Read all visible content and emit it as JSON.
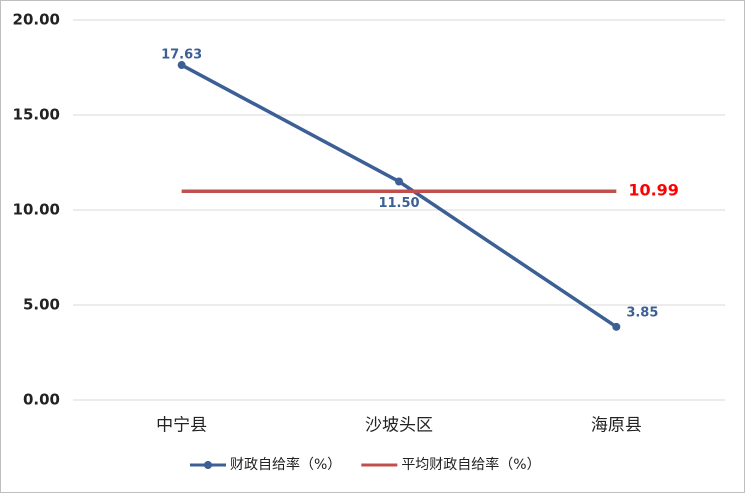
{
  "chart_data": {
    "type": "line",
    "categories": [
      "中宁县",
      "沙坡头区",
      "海原县"
    ],
    "series": [
      {
        "name": "财政自给率（%）",
        "color": "#3c5f95",
        "values": [
          17.63,
          11.5,
          3.85
        ],
        "value_labels": [
          "17.63",
          "11.50",
          "3.85"
        ],
        "label_color": "#3c5f95",
        "markers": true
      },
      {
        "name": "平均财政自给率（%）",
        "color": "#c0504d",
        "values": [
          10.99,
          10.99,
          10.99
        ],
        "value_labels": [
          null,
          null,
          "10.99"
        ],
        "label_color": "#ff0000",
        "markers": false
      }
    ],
    "ylim": [
      0,
      20
    ],
    "yticks": [
      {
        "value": 0,
        "label": "0.00"
      },
      {
        "value": 5,
        "label": "5.00"
      },
      {
        "value": 10,
        "label": "10.00"
      },
      {
        "value": 15,
        "label": "15.00"
      },
      {
        "value": 20,
        "label": "20.00"
      }
    ],
    "grid": true,
    "legend": "bottom"
  }
}
